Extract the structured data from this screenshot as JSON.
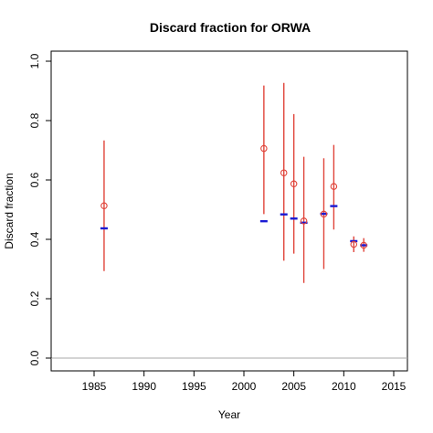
{
  "chart_data": {
    "type": "scatter",
    "title": "Discard fraction for ORWA",
    "xlabel": "Year",
    "ylabel": "Discard fraction",
    "xlim": [
      1980,
      2016
    ],
    "ylim": [
      0,
      1.0
    ],
    "x_ticks": [
      1985,
      1990,
      1995,
      2000,
      2005,
      2010,
      2015
    ],
    "y_ticks": [
      0.0,
      0.2,
      0.4,
      0.6,
      0.8,
      1.0
    ],
    "x_tick_labels": [
      "1985",
      "1990",
      "1995",
      "2000",
      "2005",
      "2010",
      "2015"
    ],
    "y_tick_labels": [
      "0.0",
      "0.2",
      "0.4",
      "0.6",
      "0.8",
      "1.0"
    ],
    "reference_line_y": 0.0,
    "grid": false,
    "colors": {
      "observed": "#e0443a",
      "interval": "#e0443a",
      "expected": "#1a1ad4",
      "reference": "#aaaaaa"
    },
    "series": [
      {
        "marker": "open-circle",
        "x": [
          1986,
          2002,
          2004,
          2005,
          2006,
          2008,
          2009,
          2011,
          2012
        ],
        "y": [
          0.513,
          0.706,
          0.624,
          0.587,
          0.462,
          0.485,
          0.578,
          0.383,
          0.38
        ],
        "lower": [
          0.293,
          0.485,
          0.328,
          0.352,
          0.253,
          0.3,
          0.433,
          0.357,
          0.358
        ],
        "upper": [
          0.733,
          0.918,
          0.927,
          0.822,
          0.678,
          0.673,
          0.718,
          0.41,
          0.404
        ]
      },
      {
        "marker": "dash",
        "x": [
          1986,
          2002,
          2004,
          2005,
          2006,
          2008,
          2009,
          2011,
          2012
        ],
        "y": [
          0.437,
          0.461,
          0.484,
          0.47,
          0.456,
          0.486,
          0.512,
          0.394,
          0.38
        ]
      }
    ]
  }
}
